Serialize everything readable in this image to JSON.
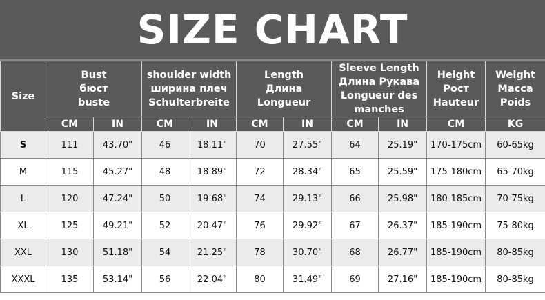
{
  "title": "SIZE CHART",
  "columns": {
    "size": "Size",
    "groups": [
      {
        "lines": [
          "Bust",
          "бюст",
          "buste"
        ],
        "units": [
          "CM",
          "IN"
        ]
      },
      {
        "lines": [
          "shoulder width",
          "ширина плеч",
          "Schulterbreite"
        ],
        "units": [
          "CM",
          "IN"
        ]
      },
      {
        "lines": [
          "Length",
          "Длина",
          "Longueur"
        ],
        "units": [
          "CM",
          "IN"
        ]
      },
      {
        "lines": [
          "Sleeve Length",
          "Длина Рукава",
          "Longueur des",
          "manches"
        ],
        "units": [
          "CM",
          "IN"
        ]
      },
      {
        "lines": [
          "Height",
          "Рост",
          "Hauteur"
        ],
        "units": [
          "CM"
        ]
      },
      {
        "lines": [
          "Weight",
          "Масса",
          "Poids"
        ],
        "units": [
          "KG"
        ]
      }
    ]
  },
  "rows": [
    [
      "S",
      "111",
      "43.70\"",
      "46",
      "18.11\"",
      "70",
      "27.55\"",
      "64",
      "25.19\"",
      "170-175cm",
      "60-65kg"
    ],
    [
      "M",
      "115",
      "45.27\"",
      "48",
      "18.89\"",
      "72",
      "28.34\"",
      "65",
      "25.59\"",
      "175-180cm",
      "65-70kg"
    ],
    [
      "L",
      "120",
      "47.24\"",
      "50",
      "19.68\"",
      "74",
      "29.13\"",
      "66",
      "25.98\"",
      "180-185cm",
      "70-75kg"
    ],
    [
      "XL",
      "125",
      "49.21\"",
      "52",
      "20.47\"",
      "76",
      "29.92\"",
      "67",
      "26.37\"",
      "185-190cm",
      "75-80kg"
    ],
    [
      "XXL",
      "130",
      "51.18\"",
      "54",
      "21.25\"",
      "78",
      "30.70\"",
      "68",
      "26.77\"",
      "185-190cm",
      "80-85kg"
    ],
    [
      "XXXL",
      "135",
      "53.14\"",
      "56",
      "22.04\"",
      "80",
      "31.49\"",
      "69",
      "27.16\"",
      "185-190cm",
      "80-85kg"
    ]
  ]
}
